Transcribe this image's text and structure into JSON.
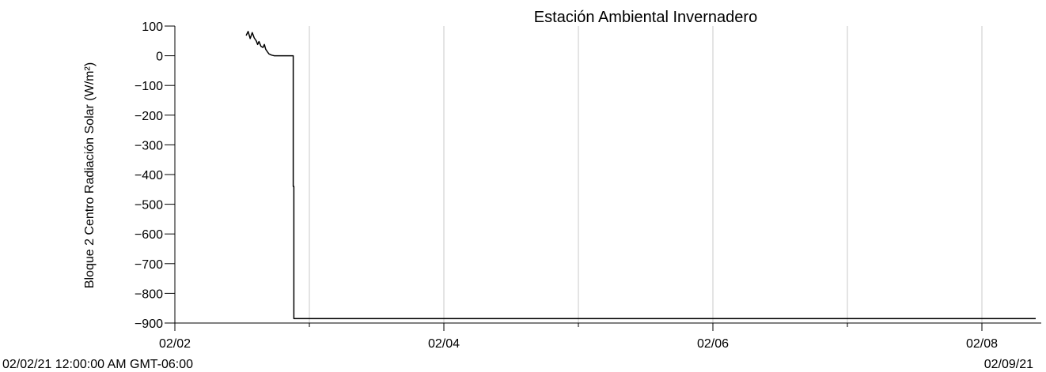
{
  "chart_data": {
    "type": "line",
    "title": "Estación Ambiental Invernadero",
    "ylabel": "Bloque 2 Centro Radiación Solar (W/m²)",
    "xlabel": "",
    "ylim": [
      -900,
      100
    ],
    "y_ticks": [
      100,
      0,
      -100,
      -200,
      -300,
      -400,
      -500,
      -600,
      -700,
      -800,
      -900
    ],
    "x_range_days": [
      0,
      6.4
    ],
    "x_ticks": [
      {
        "day": 0,
        "label": "02/02"
      },
      {
        "day": 2,
        "label": "02/04"
      },
      {
        "day": 4,
        "label": "02/06"
      },
      {
        "day": 6,
        "label": "02/08"
      }
    ],
    "x_minor_ticks_days": [
      1,
      3,
      5
    ],
    "gridlines_days": [
      1,
      2,
      3,
      4,
      5,
      6
    ],
    "grid": "vertical",
    "range_start_label": "02/02/21 12:00:00 AM GMT-06:00",
    "range_end_label": "02/09/21",
    "series": [
      {
        "color": "#000000",
        "points": [
          [
            0.53,
            68
          ],
          [
            0.545,
            82
          ],
          [
            0.56,
            58
          ],
          [
            0.575,
            78
          ],
          [
            0.59,
            60
          ],
          [
            0.605,
            50
          ],
          [
            0.615,
            38
          ],
          [
            0.625,
            48
          ],
          [
            0.64,
            32
          ],
          [
            0.655,
            28
          ],
          [
            0.665,
            38
          ],
          [
            0.675,
            22
          ],
          [
            0.69,
            12
          ],
          [
            0.7,
            6
          ],
          [
            0.72,
            2
          ],
          [
            0.74,
            0
          ],
          [
            0.8,
            0
          ],
          [
            0.85,
            0
          ],
          [
            0.88,
            0
          ],
          [
            0.88,
            -440
          ],
          [
            0.885,
            -440
          ],
          [
            0.885,
            -885
          ],
          [
            1.5,
            -885
          ],
          [
            3.0,
            -885
          ],
          [
            5.0,
            -885
          ],
          [
            6.4,
            -885
          ]
        ]
      }
    ]
  }
}
